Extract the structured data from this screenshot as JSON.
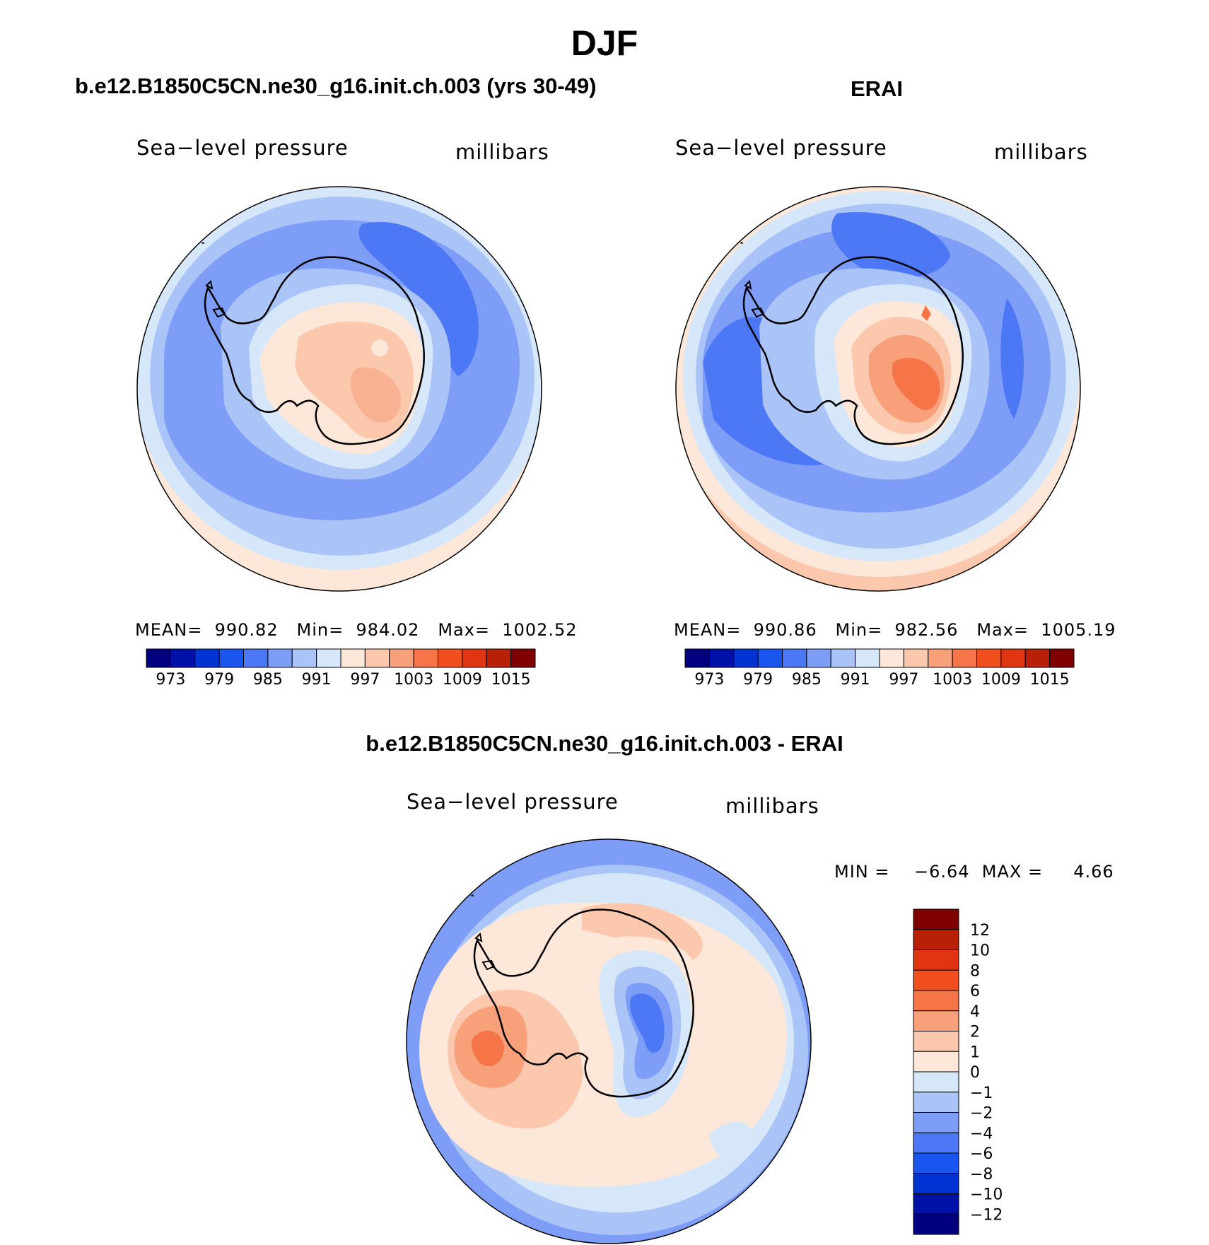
{
  "page_title": "DJF",
  "panels": [
    {
      "title": "b.e12.B1850C5CN.ne30_g16.init.ch.003 (yrs 30-49)",
      "left_label": "Sea−level pressure",
      "right_label": "millibars",
      "stats": {
        "mean": "MEAN=  990.82",
        "min": "Min=  984.02",
        "max": "Max=  1002.52"
      }
    },
    {
      "title": "ERAI",
      "left_label": "Sea−level pressure",
      "right_label": "millibars",
      "stats": {
        "mean": "MEAN=  990.86",
        "min": "Min=  982.56",
        "max": "Max=  1005.19"
      }
    }
  ],
  "absolute_colorbar": {
    "colors": [
      "#00007f",
      "#0011aa",
      "#0033d4",
      "#1a55f0",
      "#4d78f5",
      "#7d9df7",
      "#aac4f8",
      "#d6e7fa",
      "#fde7d8",
      "#fbc8ae",
      "#f7a07a",
      "#f57548",
      "#f24f1f",
      "#e03510",
      "#b82008",
      "#7f0000"
    ],
    "labels": [
      "973",
      "979",
      "985",
      "991",
      "997",
      "1003",
      "1009",
      "1015"
    ]
  },
  "diff_panel": {
    "title": "b.e12.B1850C5CN.ne30_g16.init.ch.003 - ERAI",
    "left_label": "Sea−level pressure",
    "right_label": "millibars",
    "minmax": "MIN =    −6.64  MAX =     4.66"
  },
  "diff_colorbar": {
    "colors_top_to_bottom": [
      "#7f0000",
      "#b82008",
      "#e03510",
      "#f24f1f",
      "#f57548",
      "#f7a07a",
      "#fbc8ae",
      "#fde7d8",
      "#d6e7fa",
      "#aac4f8",
      "#7d9df7",
      "#4d78f5",
      "#1a55f0",
      "#0033d4",
      "#0011aa",
      "#00007f"
    ],
    "labels": [
      "12",
      "10",
      "8",
      "6",
      "4",
      "2",
      "1",
      "0",
      "−1",
      "−2",
      "−4",
      "−6",
      "−8",
      "−10",
      "−12"
    ]
  },
  "colors": {
    "map_outline": "#000000",
    "coast": "#000000"
  }
}
